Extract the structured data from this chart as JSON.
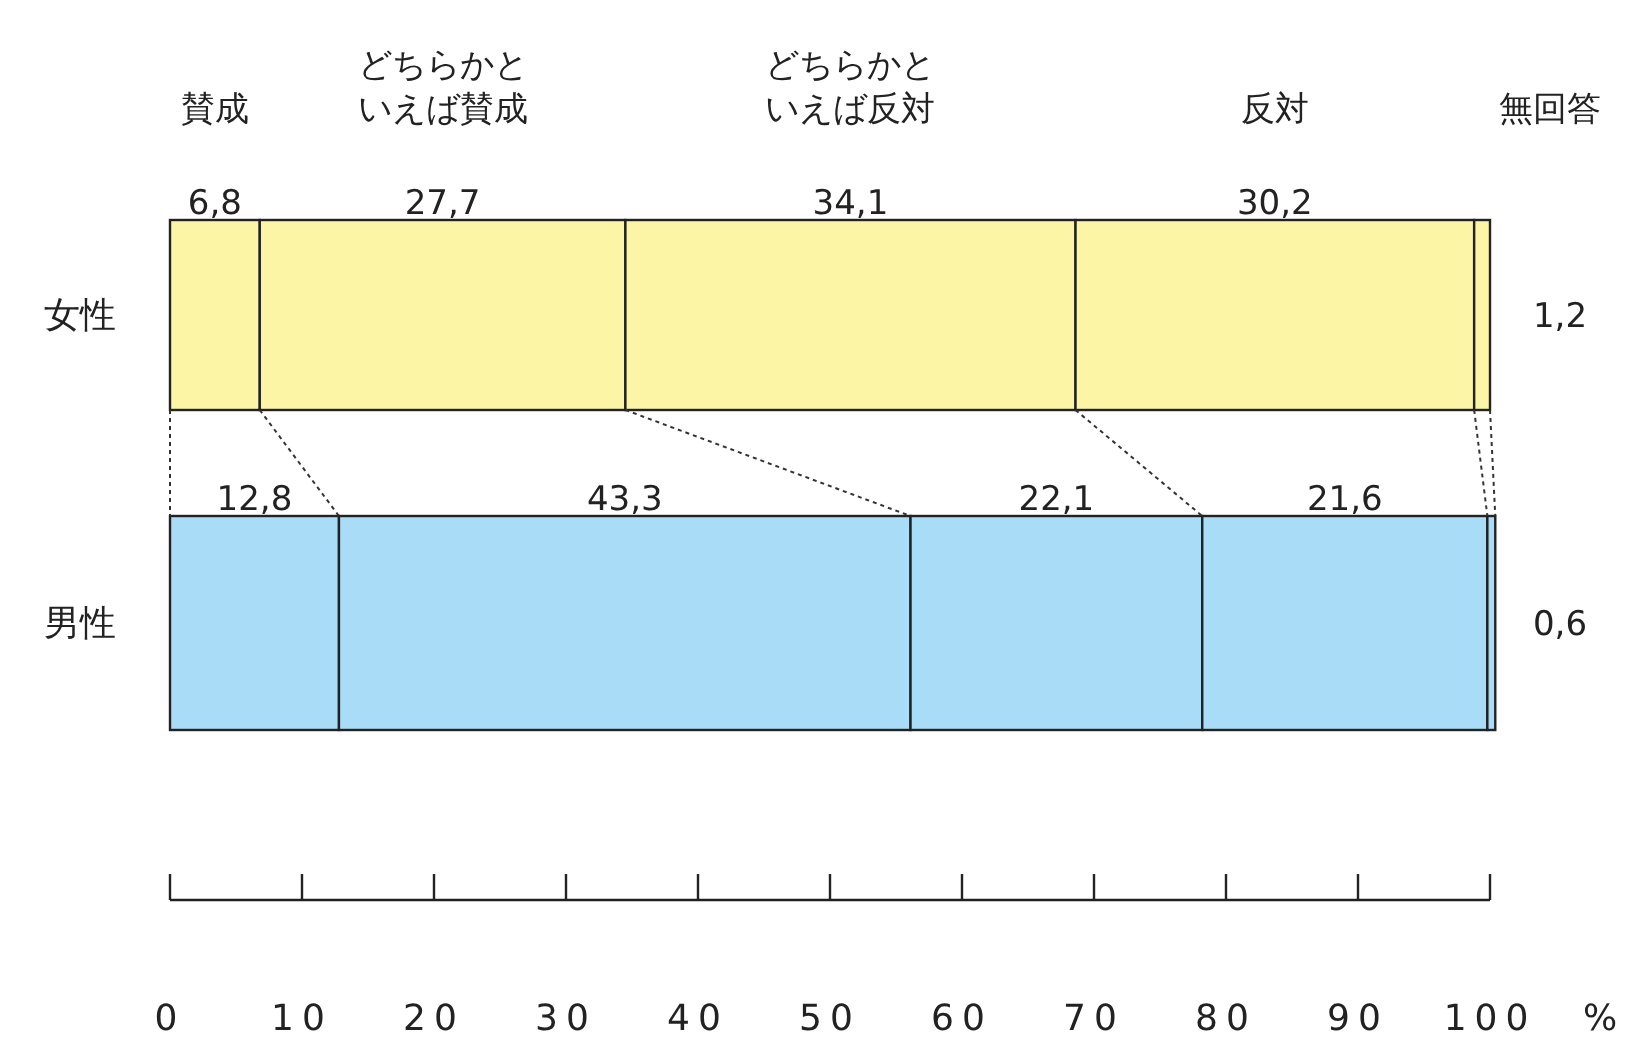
{
  "chart_data": {
    "type": "bar",
    "orientation": "horizontal",
    "stacked": true,
    "categories": [
      "女性",
      "男性"
    ],
    "series": [
      {
        "name": "賛成",
        "colors": [
          "#fdf5a6",
          "#a9dcf6"
        ],
        "values": [
          6.8,
          12.8
        ],
        "value_labels": [
          "6,8",
          "12,8"
        ]
      },
      {
        "name": "どちらかといえば賛成",
        "colors": [
          "#fdf5a6",
          "#a9dcf6"
        ],
        "values": [
          27.7,
          43.3
        ],
        "value_labels": [
          "27,7",
          "43,3"
        ]
      },
      {
        "name": "どちらかといえば反対",
        "colors": [
          "#fdf5a6",
          "#a9dcf6"
        ],
        "values": [
          34.1,
          22.1
        ],
        "value_labels": [
          "34,1",
          "22,1"
        ]
      },
      {
        "name": "反対",
        "colors": [
          "#fdf5a6",
          "#a9dcf6"
        ],
        "values": [
          30.2,
          21.6
        ],
        "value_labels": [
          "30,2",
          "21,6"
        ]
      },
      {
        "name": "無回答",
        "colors": [
          "#fdf5a6",
          "#a9dcf6"
        ],
        "values": [
          1.2,
          0.6
        ],
        "value_labels": [
          "1,2",
          "0,6"
        ]
      }
    ],
    "xlim": [
      0,
      100
    ],
    "xticks": [
      0,
      10,
      20,
      30,
      40,
      50,
      60,
      70,
      80,
      90,
      100
    ],
    "xlabel": "%",
    "grid": false
  }
}
